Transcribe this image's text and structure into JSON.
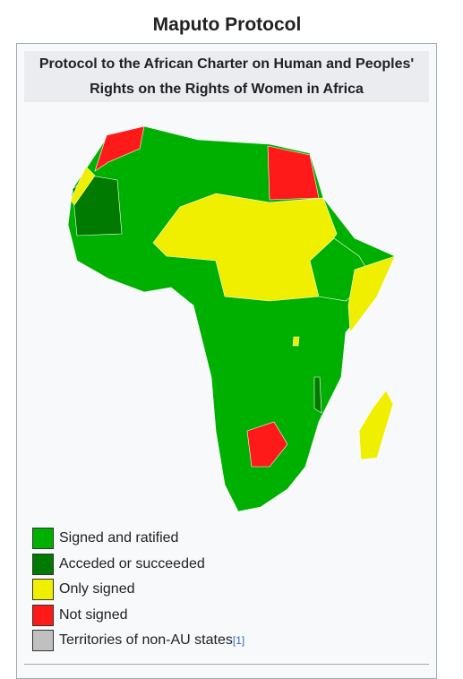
{
  "infobox": {
    "title": "Maputo Protocol",
    "caption": "Protocol to the African Charter on Human and Peoples' Rights on the Rights of Women in Africa",
    "legend": [
      {
        "label": "Signed and ratified",
        "color": "#00b000"
      },
      {
        "label": "Acceded or succeeded",
        "color": "#007a00"
      },
      {
        "label": "Only signed",
        "color": "#f0ef00"
      },
      {
        "label": "Not signed",
        "color": "#ff1a1a"
      },
      {
        "label": "Territories of non-AU states",
        "color": "#c0c0c0",
        "note": "[1]"
      }
    ]
  }
}
